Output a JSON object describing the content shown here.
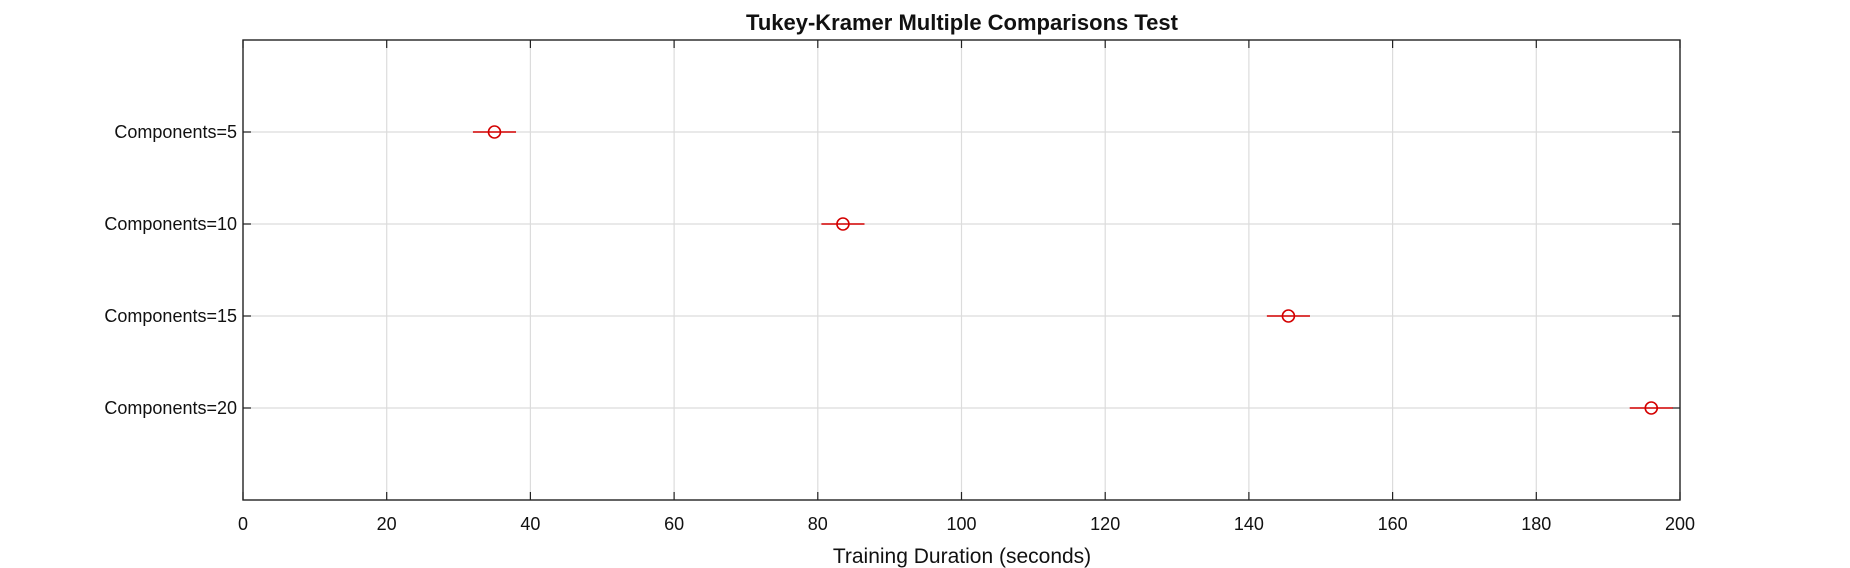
{
  "chart_data": {
    "type": "scatter",
    "title": "Tukey-Kramer Multiple Comparisons Test",
    "xlabel": "Training Duration (seconds)",
    "ylabel": "",
    "xlim": [
      0,
      200
    ],
    "xticks": [
      0,
      20,
      40,
      60,
      80,
      100,
      120,
      140,
      160,
      180,
      200
    ],
    "grid": true,
    "categories": [
      "Components=5",
      "Components=10",
      "Components=15",
      "Components=20"
    ],
    "series": [
      {
        "means": [
          35,
          83.5,
          145.5,
          196
        ],
        "lower": [
          32,
          80.5,
          142.5,
          193
        ],
        "upper": [
          38,
          86.5,
          148.5,
          199
        ],
        "color": "#d40000",
        "marker": "circle-icon"
      }
    ]
  }
}
